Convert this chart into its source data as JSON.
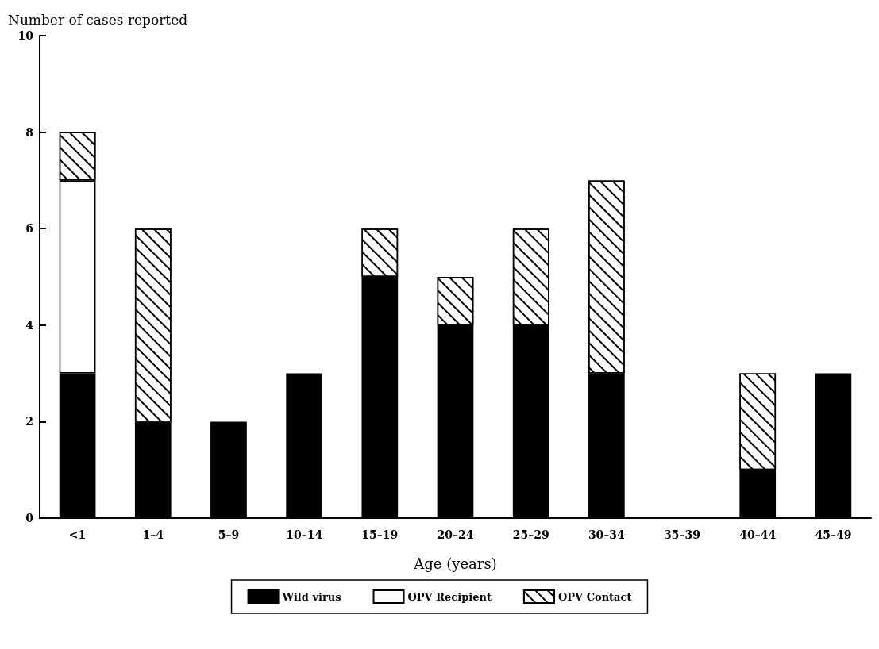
{
  "chart_data": {
    "type": "bar",
    "stacked": true,
    "xlabel": "Age (years)",
    "ylabel": "Number of cases reported",
    "categories": [
      "<1",
      "1–4",
      "5–9",
      "10–14",
      "15–19",
      "20–24",
      "25–29",
      "30–34",
      "35–39",
      "40–44",
      "45–49"
    ],
    "series": [
      {
        "name": "Wild virus",
        "color": "#000000",
        "values": [
          3,
          2,
          2,
          3,
          5,
          4,
          4,
          3,
          0,
          1,
          3
        ]
      },
      {
        "name": "OPV Recipient",
        "color": "#ffffff",
        "values": [
          4,
          0,
          0,
          0,
          0,
          0,
          0,
          0,
          0,
          0,
          0
        ]
      },
      {
        "name": "OPV Contact",
        "color": "#ffffff",
        "values": [
          1,
          4,
          0,
          0,
          1,
          1,
          2,
          4,
          0,
          2,
          0
        ]
      }
    ],
    "ylim": [
      0,
      10
    ],
    "yticks": [
      0,
      2,
      4,
      6,
      8,
      10
    ],
    "grid": false,
    "legend": "bottom"
  }
}
